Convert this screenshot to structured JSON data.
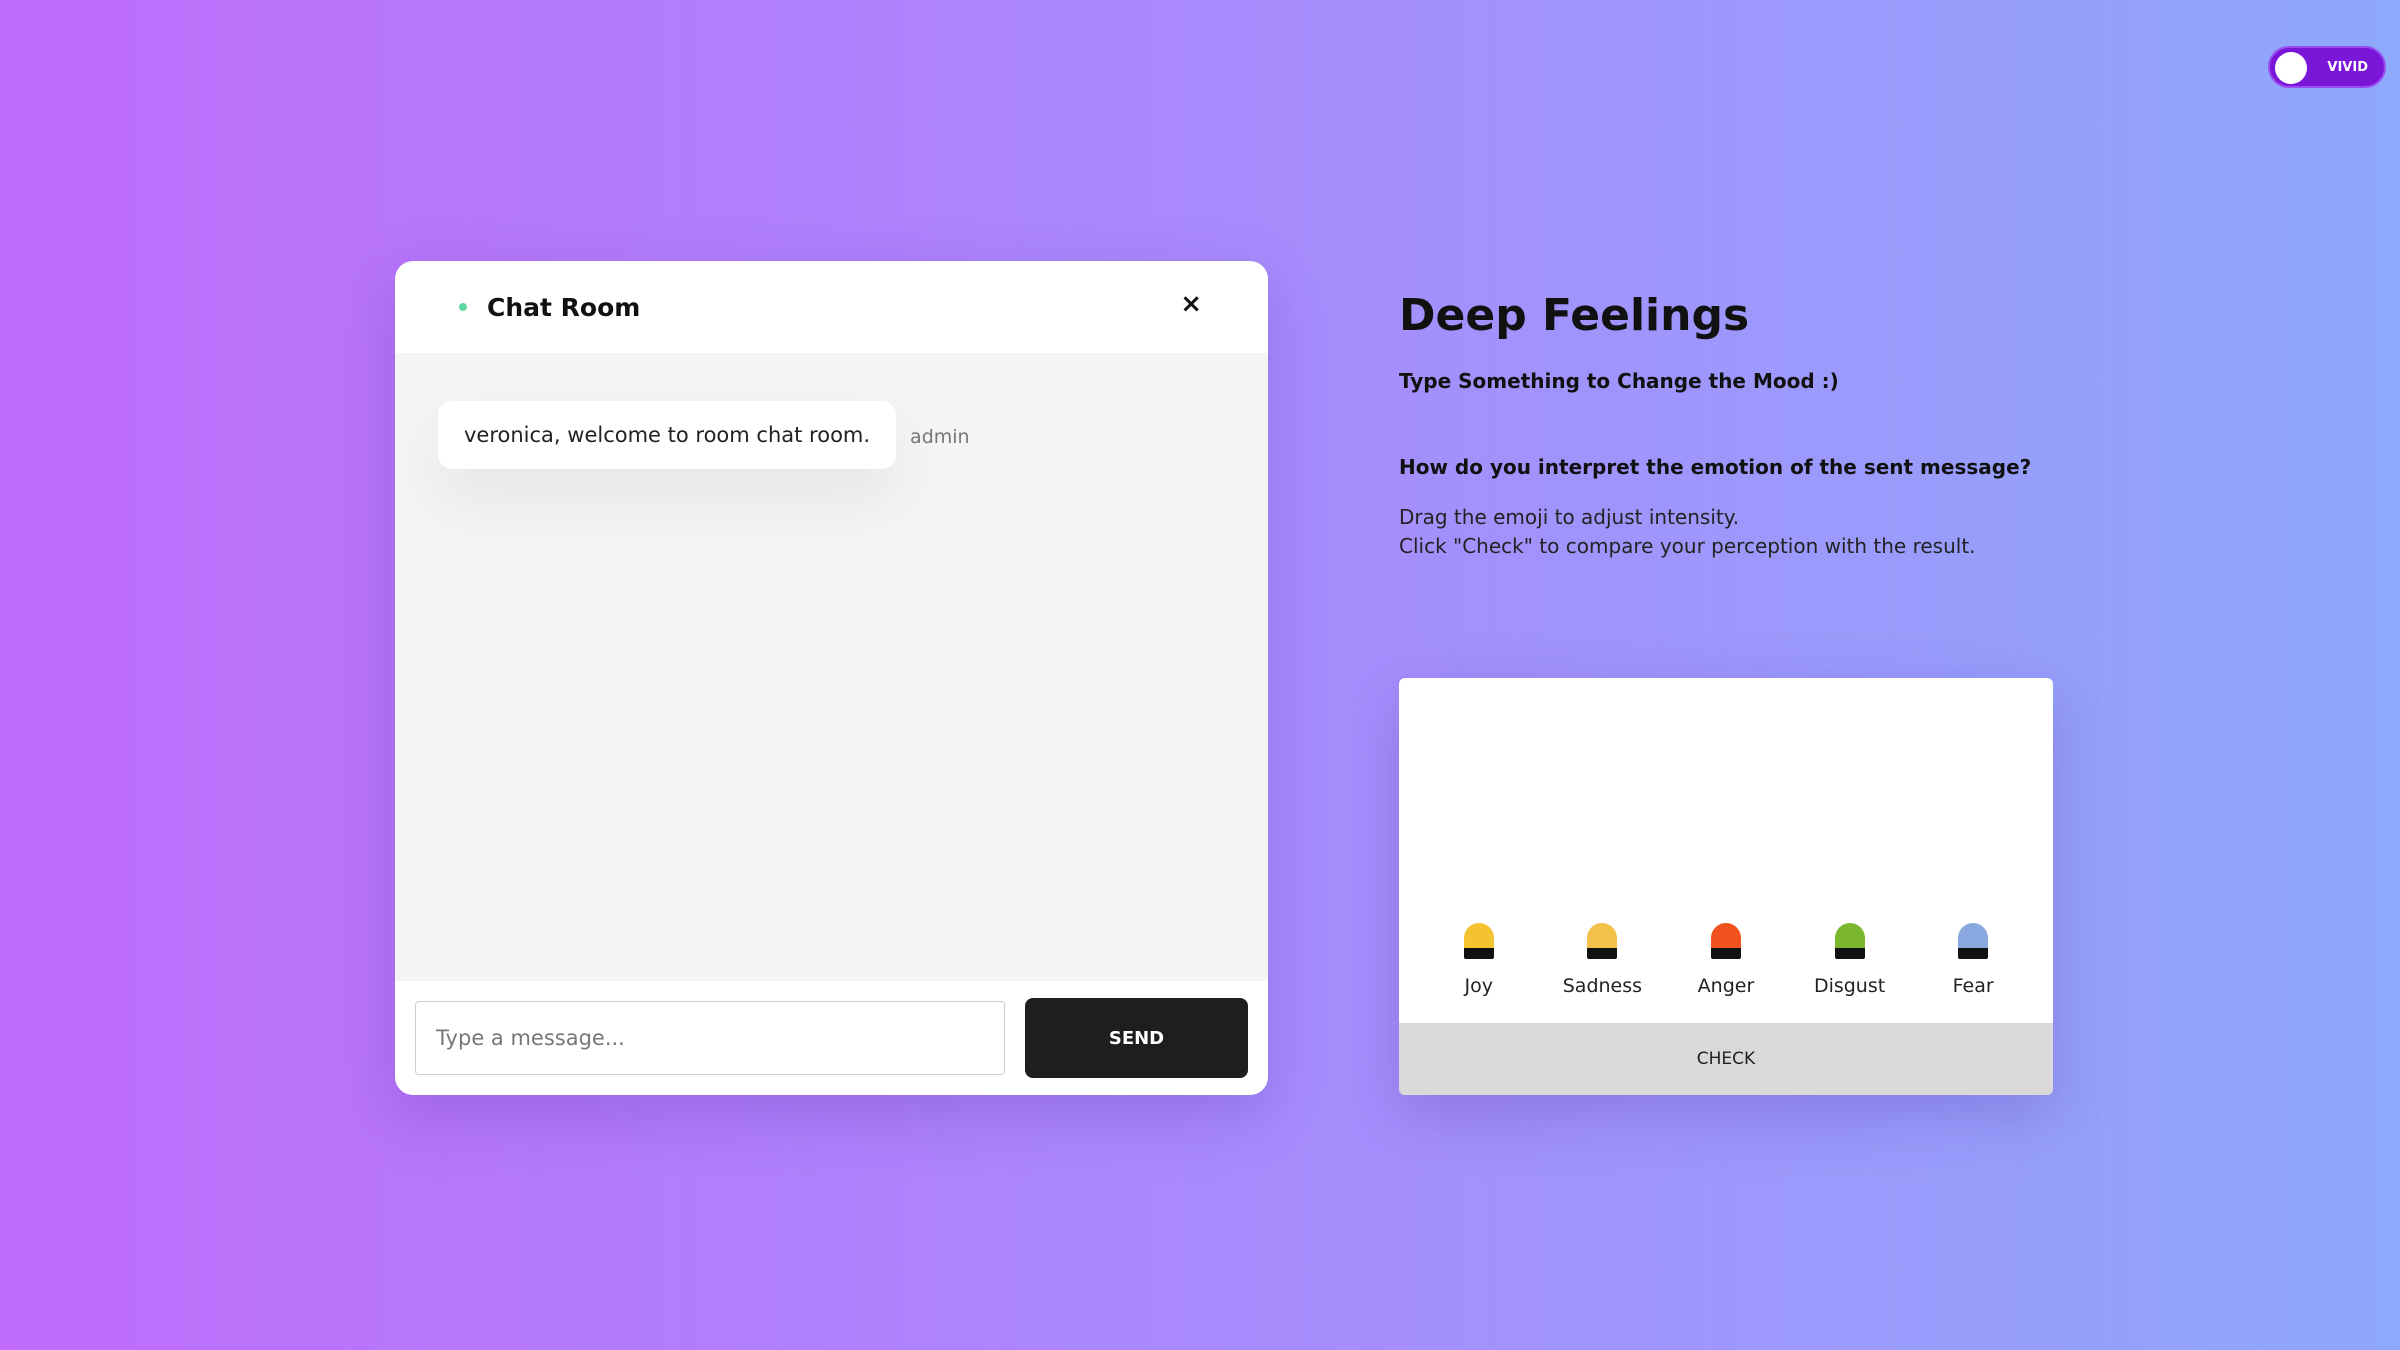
{
  "toggle": {
    "label": "VIVID"
  },
  "chat": {
    "title": "Chat Room",
    "close": "×",
    "messages": [
      {
        "text": "veronica, welcome to room chat room.",
        "author": "admin"
      }
    ],
    "input_placeholder": "Type a message...",
    "send_label": "SEND"
  },
  "info": {
    "title": "Deep Feelings",
    "subtitle": "Type Something to Change the Mood :)",
    "question": "How do you interpret the emotion of the sent message?",
    "line1": "Drag the emoji to adjust intensity.",
    "line2": "Click \"Check\" to compare your perception with the result."
  },
  "emotions": [
    {
      "label": "Joy",
      "color": "#f4c430"
    },
    {
      "label": "Sadness",
      "color": "#f2c14a"
    },
    {
      "label": "Anger",
      "color": "#f0521e"
    },
    {
      "label": "Disgust",
      "color": "#7cb82f"
    },
    {
      "label": "Fear",
      "color": "#8aa8e0"
    }
  ],
  "check_label": "CHECK"
}
